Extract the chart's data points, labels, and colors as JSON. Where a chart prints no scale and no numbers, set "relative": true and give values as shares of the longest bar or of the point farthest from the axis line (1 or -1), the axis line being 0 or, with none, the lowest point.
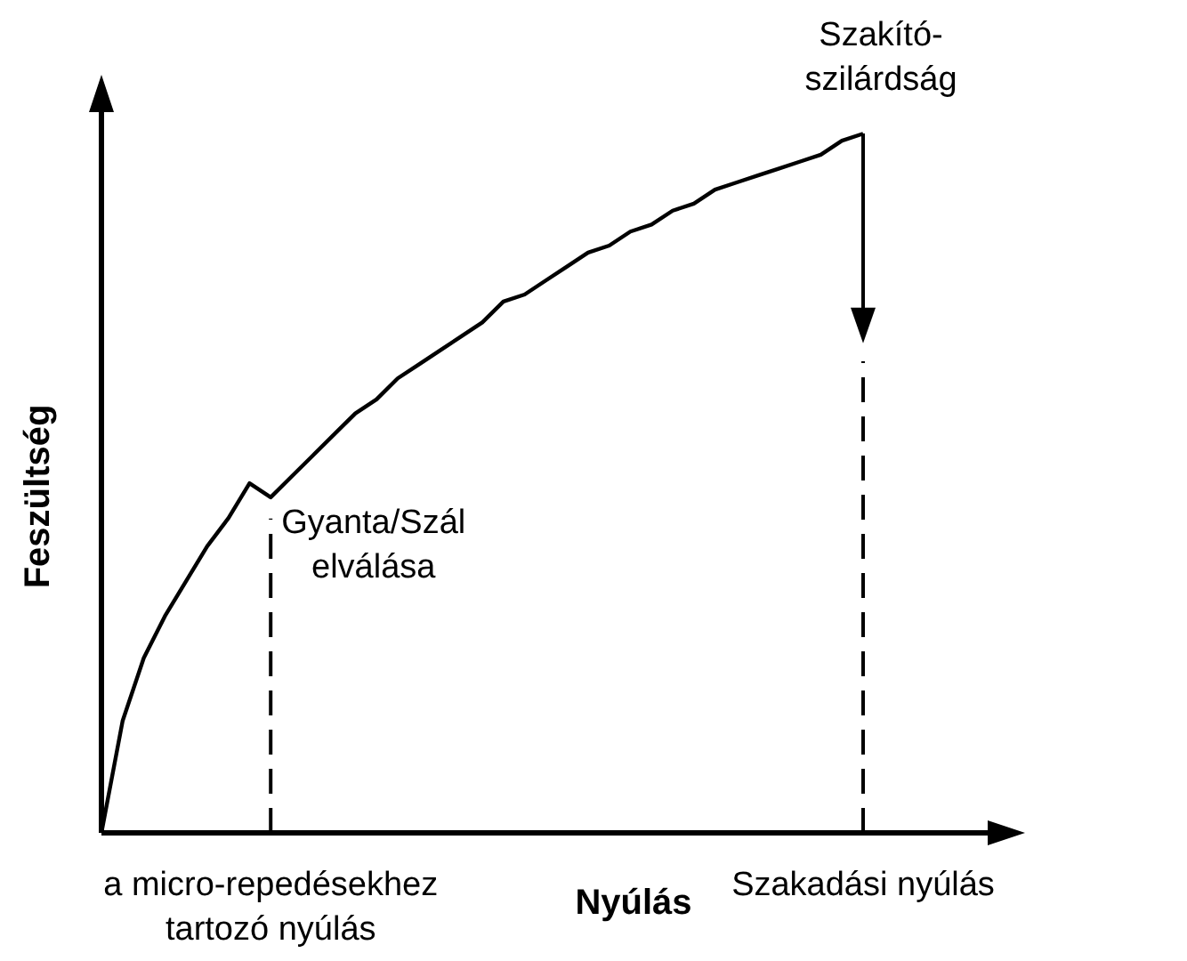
{
  "chart_data": {
    "type": "line",
    "relative": true,
    "xlabel": "Nyúlás",
    "ylabel": "Feszültség",
    "tick_labels": false,
    "legend": false,
    "marker": "none",
    "line_style": "solid",
    "categories": [
      null,
      null,
      null,
      null,
      null,
      null,
      null,
      null,
      null,
      null,
      null,
      null,
      null,
      null,
      null,
      null,
      null,
      null,
      null,
      null,
      null,
      null,
      null,
      null,
      null,
      null,
      null,
      null,
      null,
      null,
      null,
      null,
      null,
      null,
      null,
      null,
      null
    ],
    "series": [
      {
        "color": "#000000",
        "values": [
          0,
          0.16,
          0.25,
          0.31,
          0.36,
          0.41,
          0.45,
          0.5,
          0.48,
          0.51,
          0.54,
          0.57,
          0.6,
          0.62,
          0.65,
          0.67,
          0.69,
          0.71,
          0.73,
          0.76,
          0.77,
          0.79,
          0.81,
          0.83,
          0.84,
          0.86,
          0.87,
          0.89,
          0.9,
          0.92,
          0.93,
          0.94,
          0.95,
          0.96,
          0.97,
          0.99,
          1
        ]
      }
    ],
    "annotations": [
      "Szakító-szilárdság",
      "Gyanta/Szál elválása",
      "a micro-repedésekhez tartozó nyúlás",
      "Szakadási nyúlás"
    ]
  }
}
